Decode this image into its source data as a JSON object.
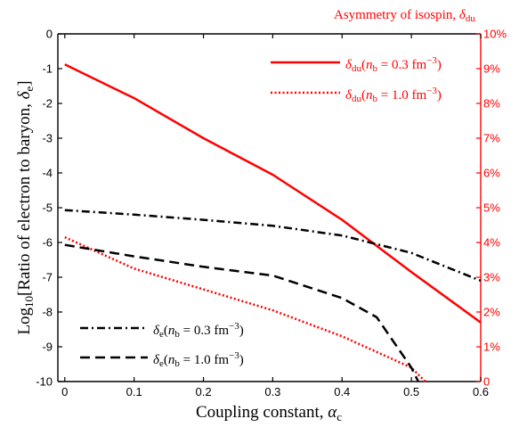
{
  "chart_data": {
    "type": "line",
    "xlabel": "Coupling constant, αc",
    "ylabel_left": "Log10[Ratio of electron to baryon, δe]",
    "ylabel_right": "Asymmetry of isospin, δdu",
    "xlim": [
      -0.01,
      0.6
    ],
    "x_ticks": [
      "0",
      "0.1",
      "0.2",
      "0.3",
      "0.4",
      "0.5",
      "0.6"
    ],
    "ylim_left": [
      -10,
      0
    ],
    "y_ticks_left": [
      "0",
      "-1",
      "-2",
      "-3",
      "-4",
      "-5",
      "-6",
      "-7",
      "-8",
      "-9",
      "-10"
    ],
    "ylim_right": [
      0,
      10
    ],
    "y_ticks_right": [
      "10%",
      "9%",
      "8%",
      "7%",
      "6%",
      "5%",
      "4%",
      "3%",
      "2%",
      "1%",
      "0"
    ],
    "grid": false,
    "legend_placement": "top-right and bottom-left",
    "series": [
      {
        "name": "δdu(nb = 0.3 fm−3)",
        "axis": "right",
        "style": "solid",
        "color": "#ff0000",
        "x": [
          0,
          0.1,
          0.2,
          0.3,
          0.4,
          0.5,
          0.6
        ],
        "y": [
          9.12,
          8.15,
          7.0,
          5.95,
          4.65,
          3.15,
          1.7
        ]
      },
      {
        "name": "δdu(nb = 1.0 fm−3)",
        "axis": "right",
        "style": "dotted",
        "color": "#ff0000",
        "x": [
          0,
          0.1,
          0.2,
          0.3,
          0.4,
          0.5,
          0.52
        ],
        "y": [
          4.15,
          3.25,
          2.65,
          2.05,
          1.3,
          0.4,
          0.0
        ]
      },
      {
        "name": "δe(nb = 0.3 fm−3)",
        "axis": "left",
        "style": "dashdot",
        "color": "#000000",
        "x": [
          0,
          0.1,
          0.2,
          0.3,
          0.4,
          0.5,
          0.6
        ],
        "y": [
          -5.07,
          -5.2,
          -5.35,
          -5.52,
          -5.8,
          -6.3,
          -7.1
        ]
      },
      {
        "name": "δe(nb = 1.0 fm−3)",
        "axis": "left",
        "style": "dashed",
        "color": "#000000",
        "x": [
          0,
          0.1,
          0.2,
          0.3,
          0.4,
          0.45,
          0.5,
          0.51
        ],
        "y": [
          -6.07,
          -6.4,
          -6.7,
          -6.95,
          -7.6,
          -8.15,
          -9.6,
          -10.0
        ]
      }
    ]
  }
}
